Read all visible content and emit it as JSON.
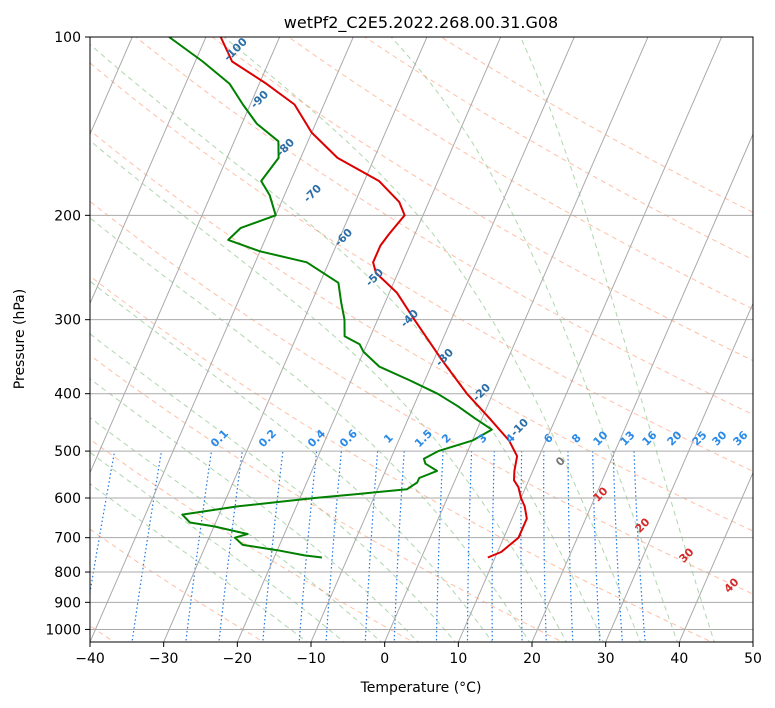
{
  "chart_data": {
    "type": "skewt",
    "title": "wetPf2_C2E5.2022.268.00.31.G08",
    "xlabel": "Temperature (°C)",
    "ylabel": "Pressure (hPa)",
    "xlim": [
      -40,
      50
    ],
    "ylim": [
      1050,
      100
    ],
    "x_ticks": [
      -40,
      -30,
      -20,
      -10,
      0,
      10,
      20,
      30,
      40,
      50
    ],
    "p_ticks": [
      1000,
      900,
      800,
      700,
      600,
      500,
      400,
      300,
      200,
      100
    ],
    "isotherms": [
      -160,
      -150,
      -140,
      -130,
      -120,
      -110,
      -100,
      -90,
      -80,
      -70,
      -60,
      -50,
      -40,
      -30,
      -20,
      -10,
      0,
      10,
      20,
      30,
      40,
      50
    ],
    "dry_adiabats_theta_c": [
      -80,
      -60,
      -40,
      -20,
      0,
      20,
      40,
      60,
      80,
      100,
      120,
      140,
      160,
      180,
      200
    ],
    "moist_adiabats_c": [
      -10,
      -5,
      0,
      5,
      10,
      15,
      20,
      25,
      30,
      35,
      40,
      45
    ],
    "mixing_ratios_gkg": [
      "0.1",
      "0.2",
      "0.4",
      "0.6",
      "1",
      "1.5",
      "2",
      "3",
      "4",
      "6",
      "8",
      "10",
      "13",
      "16",
      "20",
      "25",
      "30",
      "36"
    ],
    "isotherm_labels_blue": [
      "-100",
      "-90",
      "-80",
      "-70",
      "-60",
      "-50",
      "-40",
      "-30",
      "-20",
      "-10"
    ],
    "isotherm_labels_gray": [
      "0"
    ],
    "isotherm_labels_red": [
      "10",
      "20",
      "30",
      "40"
    ],
    "series": [
      {
        "name": "Temperature",
        "color": "#dd0000",
        "points": [
          [
            756,
            9.0
          ],
          [
            740,
            10.5
          ],
          [
            700,
            12.0
          ],
          [
            650,
            12.0
          ],
          [
            620,
            11.0
          ],
          [
            600,
            10.0
          ],
          [
            575,
            9.0
          ],
          [
            560,
            8.0
          ],
          [
            540,
            7.5
          ],
          [
            510,
            7.0
          ],
          [
            480,
            5.0
          ],
          [
            440,
            1.0
          ],
          [
            400,
            -3.5
          ],
          [
            350,
            -9.0
          ],
          [
            300,
            -15.0
          ],
          [
            270,
            -19.0
          ],
          [
            250,
            -23.0
          ],
          [
            240,
            -24.0
          ],
          [
            225,
            -24.0
          ],
          [
            215,
            -23.5
          ],
          [
            200,
            -22.5
          ],
          [
            190,
            -24.0
          ],
          [
            175,
            -28.0
          ],
          [
            160,
            -35.0
          ],
          [
            145,
            -40.0
          ],
          [
            130,
            -44.0
          ],
          [
            120,
            -49.0
          ],
          [
            110,
            -55.0
          ],
          [
            100,
            -58.0
          ]
        ]
      },
      {
        "name": "Dewpoint",
        "color": "#008000",
        "points": [
          [
            756,
            -13.5
          ],
          [
            750,
            -16.0
          ],
          [
            735,
            -20.0
          ],
          [
            720,
            -25.0
          ],
          [
            700,
            -26.5
          ],
          [
            690,
            -25.0
          ],
          [
            670,
            -30.0
          ],
          [
            660,
            -33.5
          ],
          [
            640,
            -35.0
          ],
          [
            620,
            -28.0
          ],
          [
            600,
            -18.0
          ],
          [
            590,
            -12.0
          ],
          [
            580,
            -6.0
          ],
          [
            565,
            -5.0
          ],
          [
            555,
            -5.0
          ],
          [
            540,
            -3.0
          ],
          [
            525,
            -5.0
          ],
          [
            515,
            -5.5
          ],
          [
            500,
            -4.0
          ],
          [
            480,
            0.0
          ],
          [
            460,
            2.0
          ],
          [
            440,
            -1.0
          ],
          [
            420,
            -4.0
          ],
          [
            400,
            -7.5
          ],
          [
            380,
            -12.0
          ],
          [
            360,
            -17.0
          ],
          [
            340,
            -20.0
          ],
          [
            330,
            -21.0
          ],
          [
            320,
            -23.5
          ],
          [
            300,
            -24.5
          ],
          [
            280,
            -26.0
          ],
          [
            260,
            -27.5
          ],
          [
            240,
            -33.0
          ],
          [
            230,
            -40.0
          ],
          [
            220,
            -45.0
          ],
          [
            210,
            -44.0
          ],
          [
            200,
            -40.0
          ],
          [
            185,
            -42.0
          ],
          [
            175,
            -44.0
          ],
          [
            160,
            -43.0
          ],
          [
            150,
            -44.0
          ],
          [
            140,
            -48.0
          ],
          [
            130,
            -51.0
          ],
          [
            120,
            -54.0
          ],
          [
            110,
            -59.0
          ],
          [
            100,
            -65.0
          ]
        ]
      }
    ]
  }
}
